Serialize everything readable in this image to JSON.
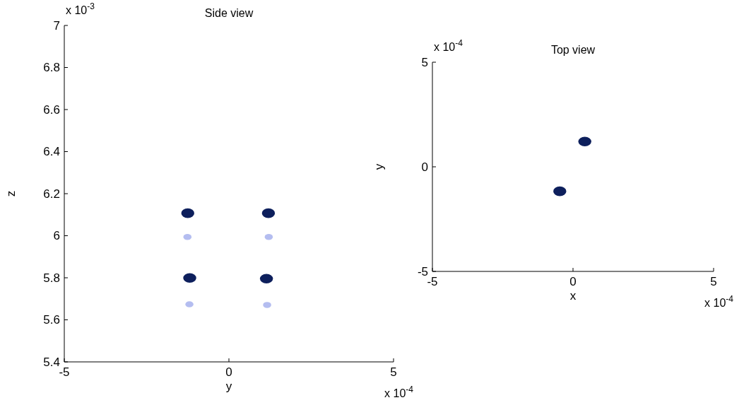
{
  "chart_data": [
    {
      "type": "scatter",
      "title": "Side view",
      "xlabel": "y",
      "ylabel": "z",
      "xlim": [
        -5,
        5
      ],
      "xticks": [
        -5,
        0,
        5
      ],
      "ylim": [
        5.4,
        7
      ],
      "yticks": [
        5.4,
        5.6,
        5.8,
        6,
        6.2,
        6.4,
        6.6,
        6.8,
        7
      ],
      "grid": false,
      "marker": "circle",
      "annotations": [
        "x 10$^{-3}$",
        "x 10$^{-4}$"
      ],
      "series": [
        {
          "color": "#0d1f5c",
          "x": [
            -1.25,
            1.2,
            -1.19,
            1.14
          ],
          "values": [
            6.107,
            6.107,
            5.799,
            5.796
          ]
        },
        {
          "color": "#b4bdf0",
          "x": [
            -1.26,
            1.21,
            -1.2,
            1.16
          ],
          "values": [
            5.994,
            5.994,
            5.674,
            5.671
          ]
        }
      ]
    },
    {
      "type": "scatter",
      "title": "Top view",
      "xlabel": "x",
      "ylabel": "y",
      "xlim": [
        -5,
        5
      ],
      "xticks": [
        -5,
        0,
        5
      ],
      "ylim": [
        -5,
        5
      ],
      "yticks": [
        -5,
        0,
        5
      ],
      "grid": false,
      "marker": "circle",
      "annotations": [
        "x 10$^{-4}$",
        "x 10$^{-4}$"
      ],
      "series": [
        {
          "color": "#0d1f5c",
          "x": [
            0.42,
            -0.47
          ],
          "values": [
            1.21,
            -1.17
          ]
        }
      ]
    }
  ]
}
